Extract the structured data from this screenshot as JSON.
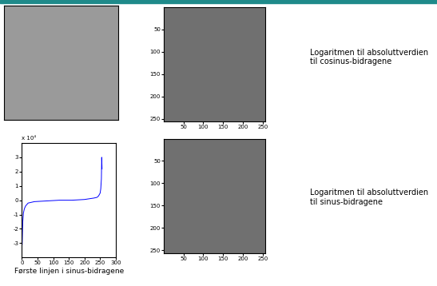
{
  "chart_data": [
    {
      "type": "image",
      "annotations": [
        "Logaritmen til absoluttverdien til cosinus-bidragene"
      ],
      "xlim": [
        0.5,
        256.5
      ],
      "ylim": [
        256.5,
        0.5
      ],
      "xticks": [
        50,
        100,
        150,
        200,
        250
      ],
      "yticks": [
        50,
        100,
        150,
        200,
        250
      ]
    },
    {
      "type": "image",
      "annotations": [
        "Logaritmen til absoluttverdien til sinus-bidragene"
      ],
      "xlim": [
        0.5,
        256.5
      ],
      "ylim": [
        256.5,
        0.5
      ],
      "xticks": [
        50,
        100,
        150,
        200,
        250
      ],
      "yticks": [
        50,
        100,
        150,
        200,
        250
      ]
    },
    {
      "type": "line",
      "xlabel": "Første linjen i sinus-bidragene",
      "annotations": [
        "x 10⁴"
      ],
      "x": [
        1,
        2,
        3,
        5,
        8,
        12,
        20,
        40,
        80,
        120,
        160,
        200,
        230,
        240,
        245,
        250,
        252,
        254,
        255,
        256
      ],
      "values": [
        -3.1,
        -2.2,
        -1.5,
        -0.9,
        -0.6,
        -0.4,
        -0.2,
        -0.1,
        -0.05,
        0,
        0,
        0.05,
        0.15,
        0.2,
        0.3,
        0.5,
        0.8,
        1.5,
        3.0,
        2.2
      ],
      "color": "#0000ff",
      "xlim": [
        0,
        300
      ],
      "ylim": [
        -4,
        4
      ],
      "xticks": [
        0,
        50,
        100,
        150,
        200,
        250,
        300
      ],
      "yticks": [
        -3,
        -2,
        -1,
        0,
        1,
        2,
        3
      ]
    }
  ]
}
